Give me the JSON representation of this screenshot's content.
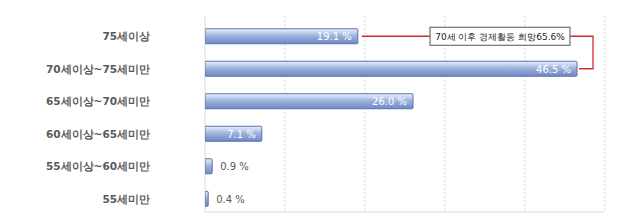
{
  "chart_data": {
    "type": "bar",
    "orientation": "horizontal",
    "categories": [
      "75세이상",
      "70세이상~75세미만",
      "65세이상~70세미만",
      "60세이상~65세미만",
      "55세이상~60세미만",
      "55세미만"
    ],
    "values": [
      19.1,
      46.5,
      26.0,
      7.1,
      0.9,
      0.4
    ],
    "value_labels": [
      "19.1 %",
      "46.5 %",
      "26.0 %",
      "7.1 %",
      "0.9 %",
      "0.4 %"
    ],
    "color": "#9fb4e0",
    "xlim": [
      0,
      50
    ],
    "xticks": [
      0,
      10,
      20,
      30,
      40,
      50
    ],
    "grid": true,
    "data_labels": true,
    "tick_labels": "y",
    "annotation": "70세 이후 경제활동 희망65.6%"
  }
}
